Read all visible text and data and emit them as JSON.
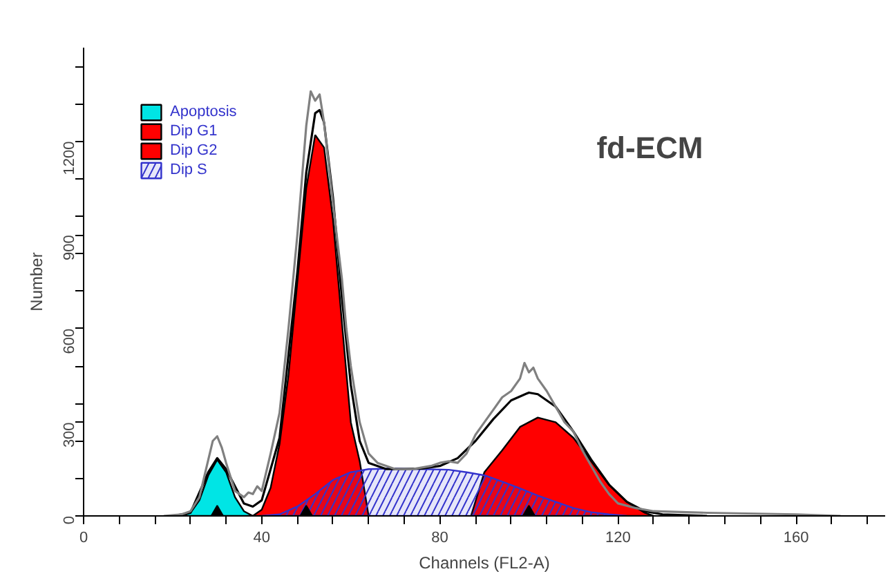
{
  "chart_data": {
    "type": "area",
    "xlabel": "Channels (FL2-A)",
    "ylabel": "Number",
    "annotations": [
      "fd-ECM"
    ],
    "xlim": [
      0,
      180
    ],
    "ylim": [
      0,
      1500
    ],
    "xticks": [
      0,
      {
        "value": 8,
        "label": null
      },
      {
        "value": 16,
        "label": null
      },
      {
        "value": 24,
        "label": null
      },
      {
        "value": 32,
        "label": null
      },
      40,
      {
        "value": 48,
        "label": null
      },
      {
        "value": 56,
        "label": null
      },
      {
        "value": 64,
        "label": null
      },
      {
        "value": 72,
        "label": null
      },
      80,
      {
        "value": 88,
        "label": null
      },
      {
        "value": 96,
        "label": null
      },
      {
        "value": 104,
        "label": null
      },
      {
        "value": 112,
        "label": null
      },
      120,
      {
        "value": 128,
        "label": null
      },
      {
        "value": 136,
        "label": null
      },
      {
        "value": 144,
        "label": null
      },
      {
        "value": 152,
        "label": null
      },
      160,
      {
        "value": 168,
        "label": null
      },
      {
        "value": 176,
        "label": null
      }
    ],
    "yticks": [
      0,
      {
        "value": 120,
        "label": null
      },
      {
        "value": 240,
        "label": null
      },
      300,
      {
        "value": 360,
        "label": null
      },
      {
        "value": 480,
        "label": null
      },
      600,
      {
        "value": 720,
        "label": null
      },
      {
        "value": 840,
        "label": null
      },
      900,
      {
        "value": 960,
        "label": null
      },
      {
        "value": 1080,
        "label": null
      },
      1200,
      {
        "value": 1320,
        "label": null
      },
      {
        "value": 1440,
        "label": null
      }
    ],
    "grid": false,
    "legend": "top left",
    "series": [
      {
        "name": "Apoptosis",
        "color": "#00e5e5",
        "x": [
          22,
          24,
          26,
          28,
          30,
          32,
          34,
          36,
          38
        ],
        "values": [
          0,
          10,
          50,
          130,
          180,
          140,
          60,
          15,
          0
        ]
      },
      {
        "name": "Dip G1",
        "color": "#ff0000",
        "x": [
          38,
          40,
          42,
          44,
          46,
          48,
          50,
          52,
          54,
          56,
          58,
          60,
          62,
          64
        ],
        "values": [
          0,
          20,
          90,
          230,
          450,
          750,
          1050,
          1220,
          1180,
          950,
          620,
          300,
          175,
          0
        ]
      },
      {
        "name": "Dip G2",
        "color": "#ff0000",
        "x": [
          87,
          90,
          94,
          98,
          102,
          106,
          110,
          114,
          118,
          122,
          126,
          128
        ],
        "values": [
          0,
          140,
          210,
          285,
          315,
          300,
          250,
          175,
          100,
          45,
          10,
          0
        ]
      },
      {
        "name": "Dip S",
        "color": "#3333cc",
        "x": [
          40,
          44,
          48,
          52,
          56,
          60,
          64,
          70,
          76,
          82,
          86,
          90,
          94,
          98,
          102,
          106,
          110,
          114,
          118,
          122
        ],
        "values": [
          0,
          5,
          30,
          70,
          115,
          140,
          150,
          152,
          150,
          148,
          140,
          130,
          110,
          88,
          65,
          45,
          25,
          12,
          5,
          0
        ]
      },
      {
        "type": "line",
        "color": "#000000",
        "x": [
          20,
          24,
          28,
          30,
          32,
          36,
          38,
          40,
          44,
          48,
          50,
          52,
          53,
          54,
          56,
          58,
          60,
          62,
          64,
          68,
          72,
          76,
          80,
          84,
          88,
          92,
          96,
          100,
          102,
          106,
          110,
          114,
          118,
          122,
          126,
          130,
          140
        ],
        "values": [
          0,
          10,
          140,
          185,
          150,
          40,
          30,
          50,
          250,
          780,
          1100,
          1290,
          1300,
          1260,
          1020,
          700,
          420,
          240,
          170,
          150,
          150,
          152,
          160,
          185,
          240,
          310,
          370,
          395,
          390,
          350,
          270,
          180,
          100,
          45,
          15,
          5,
          0
        ]
      },
      {
        "type": "line",
        "color": "#808080",
        "x": [
          18,
          22,
          24,
          26,
          28,
          29,
          30,
          31,
          32,
          34,
          36,
          37,
          38,
          39,
          40,
          42,
          44,
          46,
          48,
          50,
          51,
          52,
          53,
          54,
          56,
          58,
          59,
          60,
          62,
          64,
          66,
          70,
          74,
          78,
          80,
          82,
          84,
          86,
          88,
          90,
          92,
          94,
          96,
          98,
          99,
          100,
          101,
          102,
          104,
          106,
          108,
          110,
          112,
          114,
          116,
          118,
          120,
          124,
          128,
          140,
          160,
          170
        ],
        "values": [
          0,
          5,
          15,
          60,
          180,
          240,
          255,
          220,
          170,
          80,
          60,
          75,
          70,
          95,
          80,
          200,
          330,
          600,
          900,
          1250,
          1360,
          1330,
          1350,
          1260,
          1000,
          760,
          600,
          480,
          300,
          200,
          170,
          150,
          150,
          160,
          170,
          175,
          170,
          200,
          260,
          300,
          340,
          380,
          400,
          440,
          490,
          460,
          475,
          440,
          400,
          350,
          300,
          270,
          210,
          160,
          110,
          70,
          40,
          25,
          15,
          10,
          5,
          0
        ]
      },
      {
        "type": "scatter",
        "marker": "triangle",
        "color": "#000000",
        "x": [
          30,
          50,
          100
        ],
        "values": [
          0,
          0,
          0
        ]
      }
    ]
  }
}
